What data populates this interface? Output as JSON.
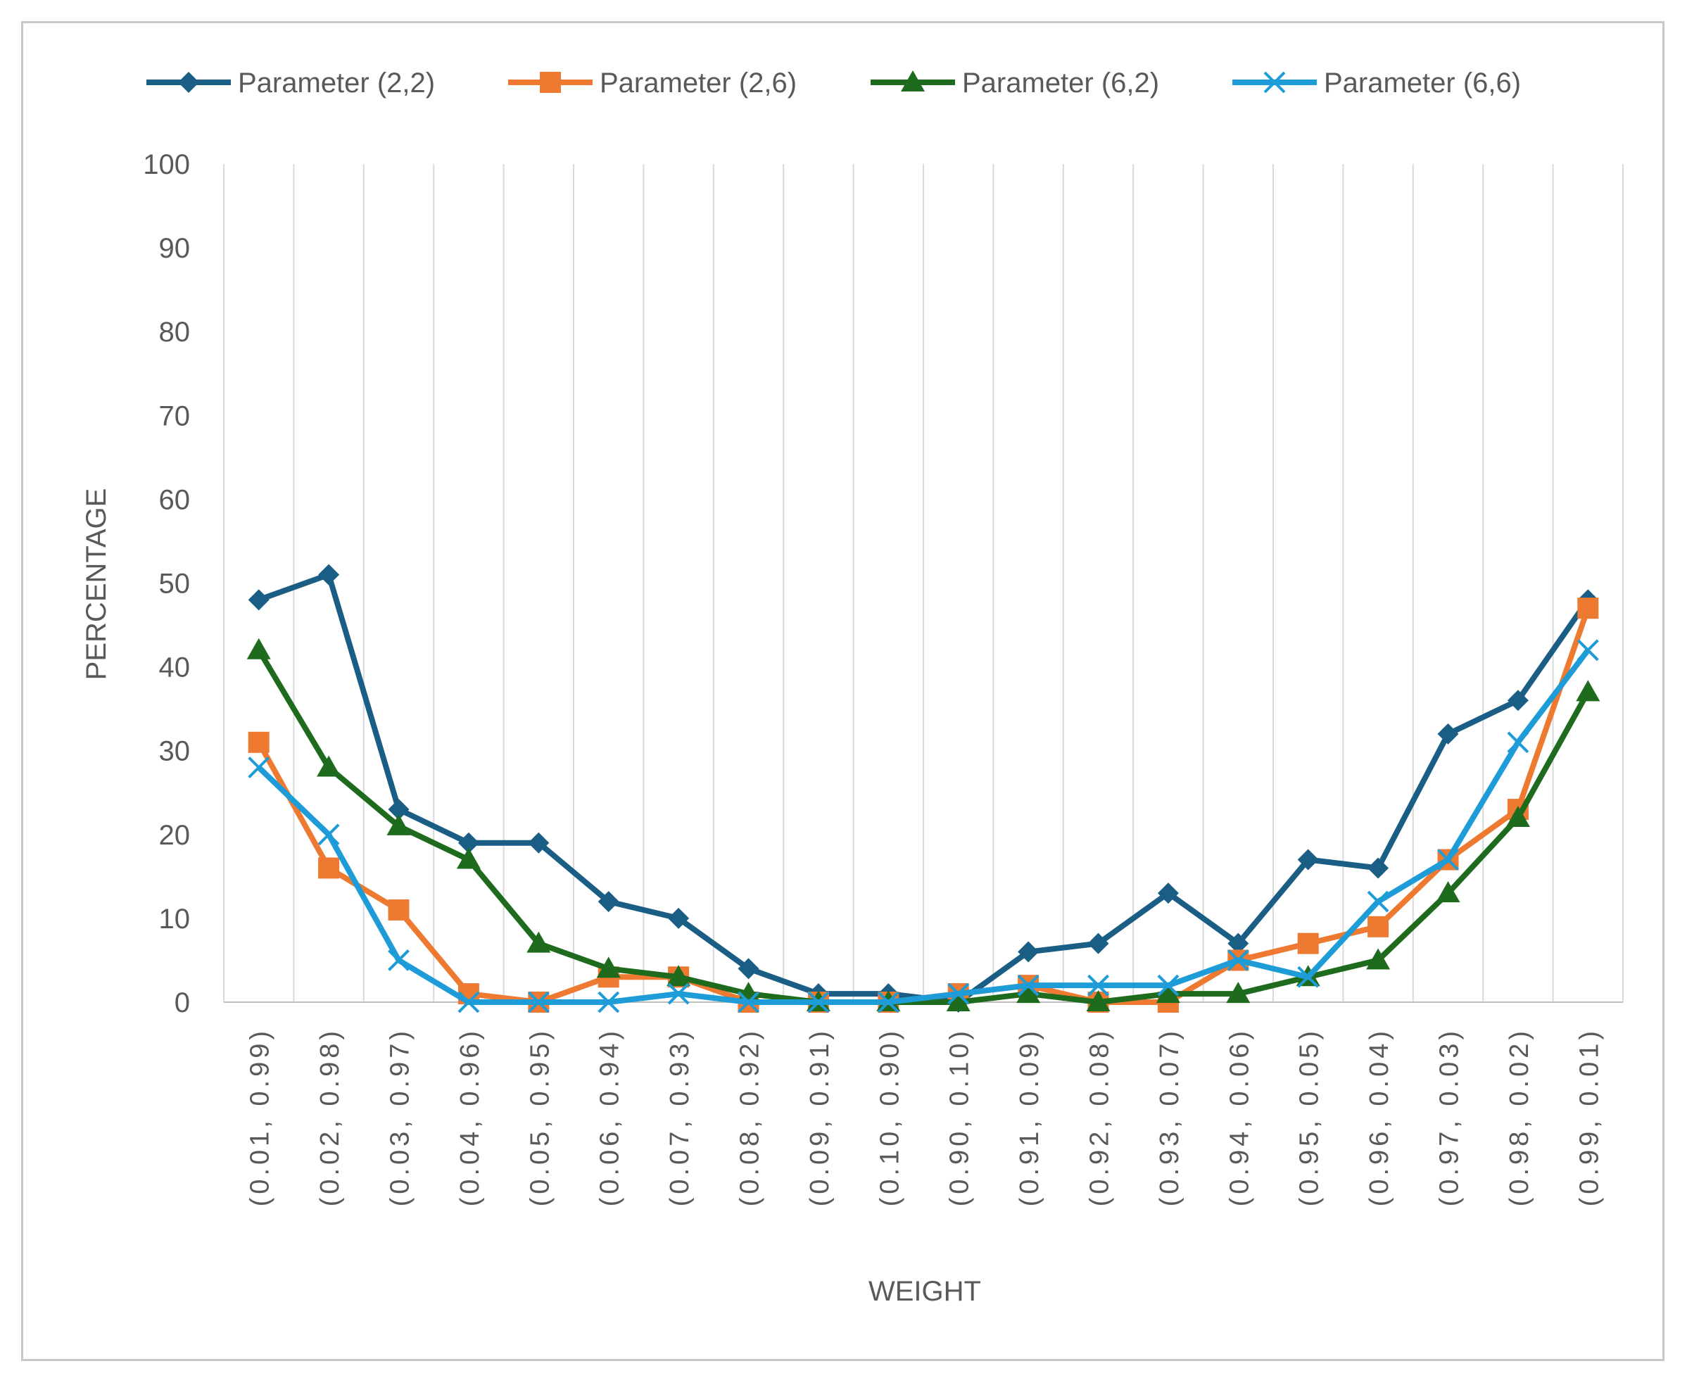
{
  "chart_data": {
    "type": "line",
    "title": "",
    "xlabel": "WEIGHT",
    "ylabel": "PERCENTAGE",
    "ylim": [
      0,
      100
    ],
    "yticks": [
      "0",
      "10",
      "20",
      "30",
      "40",
      "50",
      "60",
      "70",
      "80",
      "90",
      "100"
    ],
    "grid": "vertical",
    "legend_position": "top",
    "categories": [
      "(0.01, 0.99)",
      "(0.02, 0.98)",
      "(0.03, 0.97)",
      "(0.04, 0.96)",
      "(0.05, 0.95)",
      "(0.06, 0.94)",
      "(0.07, 0.93)",
      "(0.08, 0.92)",
      "(0.09, 0.91)",
      "(0.10, 0.90)",
      "(0.90, 0.10)",
      "(0.91, 0.09)",
      "(0.92, 0.08)",
      "(0.93, 0.07)",
      "(0.94, 0.06)",
      "(0.95, 0.05)",
      "(0.96, 0.04)",
      "(0.97, 0.03)",
      "(0.98, 0.02)",
      "(0.99, 0.01)"
    ],
    "series": [
      {
        "name": "Parameter (2,2)",
        "color": "#1a5e86",
        "marker": "diamond",
        "values": [
          48,
          51,
          23,
          19,
          19,
          12,
          10,
          4,
          1,
          1,
          0,
          6,
          7,
          13,
          7,
          17,
          16,
          32,
          36,
          48
        ]
      },
      {
        "name": "Parameter (2,6)",
        "color": "#ee7a32",
        "marker": "square",
        "values": [
          31,
          16,
          11,
          1,
          0,
          3,
          3,
          0,
          0,
          0,
          1,
          2,
          0,
          0,
          5,
          7,
          9,
          17,
          23,
          47
        ]
      },
      {
        "name": "Parameter (6,2)",
        "color": "#1f6b1d",
        "marker": "triangle",
        "values": [
          42,
          28,
          21,
          17,
          7,
          4,
          3,
          1,
          0,
          0,
          0,
          1,
          0,
          1,
          1,
          3,
          5,
          13,
          22,
          37
        ]
      },
      {
        "name": "Parameter (6,6)",
        "color": "#1e9cd8",
        "marker": "x",
        "values": [
          28,
          20,
          5,
          0,
          0,
          0,
          1,
          0,
          0,
          0,
          1,
          2,
          2,
          2,
          5,
          3,
          12,
          17,
          31,
          42
        ]
      }
    ]
  }
}
